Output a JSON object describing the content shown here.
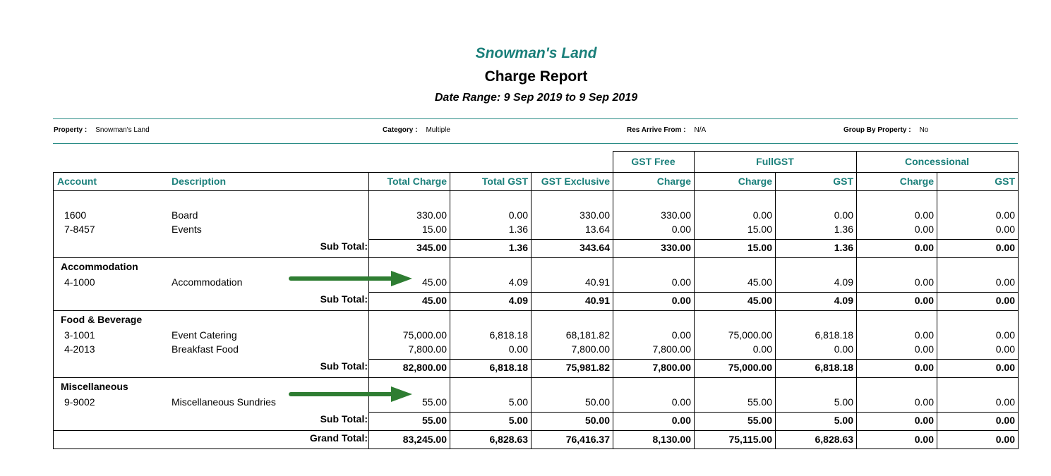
{
  "report": {
    "company": "Snowman's Land",
    "title": "Charge Report",
    "date_range": "Date Range: 9 Sep 2019 to 9 Sep 2019"
  },
  "filters": {
    "property_label": "Property :",
    "property_value": "Snowman's Land",
    "category_label": "Category :",
    "category_value": "Multiple",
    "arrive_label": "Res Arrive From :",
    "arrive_value": "N/A",
    "group_label": "Group By Property :",
    "group_value": "No"
  },
  "groups_header": [
    "GST Free",
    "FullGST",
    "Concessional"
  ],
  "columns": [
    "Account",
    "Description",
    "Total Charge",
    "Total GST",
    "GST Exclusive",
    "Charge",
    "Charge",
    "GST",
    "Charge",
    "GST"
  ],
  "sections": [
    {
      "name": "",
      "rows": [
        {
          "account": "1600",
          "description": "Board",
          "values": [
            "330.00",
            "0.00",
            "330.00",
            "330.00",
            "0.00",
            "0.00",
            "0.00",
            "0.00"
          ]
        },
        {
          "account": "7-8457",
          "description": "Events",
          "values": [
            "15.00",
            "1.36",
            "13.64",
            "0.00",
            "15.00",
            "1.36",
            "0.00",
            "0.00"
          ]
        }
      ],
      "subtotal_label": "Sub Total:",
      "subtotal": [
        "345.00",
        "1.36",
        "343.64",
        "330.00",
        "15.00",
        "1.36",
        "0.00",
        "0.00"
      ]
    },
    {
      "name": "Accommodation",
      "rows": [
        {
          "account": "4-1000",
          "description": "Accommodation",
          "values": [
            "45.00",
            "4.09",
            "40.91",
            "0.00",
            "45.00",
            "4.09",
            "0.00",
            "0.00"
          ]
        }
      ],
      "subtotal_label": "Sub Total:",
      "subtotal": [
        "45.00",
        "4.09",
        "40.91",
        "0.00",
        "45.00",
        "4.09",
        "0.00",
        "0.00"
      ]
    },
    {
      "name": "Food & Beverage",
      "rows": [
        {
          "account": "3-1001",
          "description": "Event Catering",
          "values": [
            "75,000.00",
            "6,818.18",
            "68,181.82",
            "0.00",
            "75,000.00",
            "6,818.18",
            "0.00",
            "0.00"
          ]
        },
        {
          "account": "4-2013",
          "description": "Breakfast Food",
          "values": [
            "7,800.00",
            "0.00",
            "7,800.00",
            "7,800.00",
            "0.00",
            "0.00",
            "0.00",
            "0.00"
          ]
        }
      ],
      "subtotal_label": "Sub Total:",
      "subtotal": [
        "82,800.00",
        "6,818.18",
        "75,981.82",
        "7,800.00",
        "75,000.00",
        "6,818.18",
        "0.00",
        "0.00"
      ]
    },
    {
      "name": "Miscellaneous",
      "rows": [
        {
          "account": "9-9002",
          "description": "Miscellaneous Sundries",
          "values": [
            "55.00",
            "5.00",
            "50.00",
            "0.00",
            "55.00",
            "5.00",
            "0.00",
            "0.00"
          ]
        }
      ],
      "subtotal_label": "Sub Total:",
      "subtotal": [
        "55.00",
        "5.00",
        "50.00",
        "0.00",
        "55.00",
        "5.00",
        "0.00",
        "0.00"
      ]
    }
  ],
  "grand_total_label": "Grand Total:",
  "grand_total": [
    "83,245.00",
    "6,828.63",
    "76,416.37",
    "8,130.00",
    "75,115.00",
    "6,828.63",
    "0.00",
    "0.00"
  ],
  "annotation_color": "#2e7d32"
}
